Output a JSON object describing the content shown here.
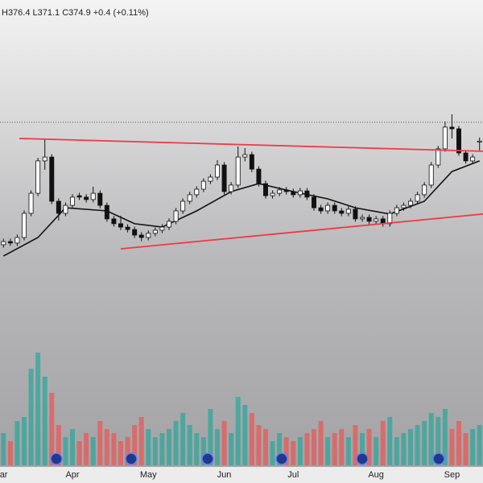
{
  "chart_data": {
    "type": "candlestick",
    "header": "H376.4 L371.1 C374.9 +0.4 (+0.11%)",
    "xlim": [
      -0.5,
      69.5
    ],
    "xticks": [
      {
        "value": -0.5,
        "label": "Mar"
      },
      {
        "value": 10,
        "label": "Apr"
      },
      {
        "value": 21,
        "label": "May"
      },
      {
        "value": 32,
        "label": "Jun"
      },
      {
        "value": 42,
        "label": "Jul"
      },
      {
        "value": 54,
        "label": "Aug"
      },
      {
        "value": 65,
        "label": "Sep"
      }
    ],
    "ylim": [
      300,
      405
    ],
    "up_color": "#ffffff",
    "down_color": "#111111",
    "ohlc": [
      [
        332.0,
        334.5,
        330.8,
        333.3
      ],
      [
        333.3,
        334.5,
        331.5,
        332.7
      ],
      [
        332.7,
        336.2,
        331.5,
        335.0
      ],
      [
        335.0,
        346.2,
        333.8,
        345.0
      ],
      [
        345.0,
        354.5,
        343.8,
        353.3
      ],
      [
        353.3,
        368.0,
        352.1,
        366.7
      ],
      [
        366.7,
        375.7,
        363.0,
        368.3
      ],
      [
        368.3,
        369.5,
        348.8,
        350.0
      ],
      [
        350.0,
        351.2,
        342.0,
        345.0
      ],
      [
        345.0,
        349.5,
        343.8,
        348.3
      ],
      [
        348.3,
        352.9,
        347.1,
        351.7
      ],
      [
        352.3,
        353.5,
        350.5,
        351.7
      ],
      [
        351.7,
        352.9,
        349.5,
        350.7
      ],
      [
        350.7,
        356.0,
        349.5,
        353.3
      ],
      [
        353.3,
        354.5,
        347.1,
        348.3
      ],
      [
        348.3,
        349.5,
        341.5,
        342.7
      ],
      [
        342.7,
        343.9,
        339.5,
        340.7
      ],
      [
        340.7,
        344.0,
        338.1,
        339.3
      ],
      [
        339.3,
        340.5,
        337.1,
        338.3
      ],
      [
        338.3,
        339.5,
        334.8,
        336.0
      ],
      [
        336.0,
        337.2,
        333.5,
        335.0
      ],
      [
        335.0,
        337.9,
        333.8,
        336.7
      ],
      [
        336.7,
        339.2,
        335.5,
        338.0
      ],
      [
        338.0,
        340.5,
        336.8,
        339.3
      ],
      [
        339.3,
        342.9,
        338.1,
        341.7
      ],
      [
        341.7,
        347.2,
        340.5,
        346.0
      ],
      [
        346.0,
        351.2,
        344.8,
        350.0
      ],
      [
        350.0,
        353.9,
        348.8,
        352.7
      ],
      [
        352.7,
        356.2,
        351.5,
        355.0
      ],
      [
        355.0,
        359.5,
        353.8,
        358.3
      ],
      [
        358.3,
        361.2,
        357.1,
        360.0
      ],
      [
        360.0,
        367.0,
        358.8,
        365.0
      ],
      [
        365.0,
        366.2,
        352.8,
        354.0
      ],
      [
        354.0,
        357.9,
        352.8,
        356.7
      ],
      [
        356.7,
        372.7,
        355.5,
        368.3
      ],
      [
        368.3,
        372.0,
        366.5,
        369.3
      ],
      [
        369.3,
        370.5,
        362.1,
        363.3
      ],
      [
        363.3,
        364.5,
        356.1,
        357.3
      ],
      [
        357.3,
        358.5,
        351.1,
        352.3
      ],
      [
        352.3,
        354.5,
        351.1,
        353.3
      ],
      [
        353.3,
        355.9,
        352.1,
        354.7
      ],
      [
        354.7,
        355.9,
        352.8,
        354.0
      ],
      [
        354.0,
        355.2,
        351.5,
        352.7
      ],
      [
        352.7,
        355.5,
        351.5,
        354.3
      ],
      [
        354.3,
        355.5,
        350.5,
        351.7
      ],
      [
        351.7,
        352.9,
        346.1,
        347.3
      ],
      [
        347.3,
        348.5,
        344.8,
        346.0
      ],
      [
        346.0,
        349.5,
        344.8,
        348.3
      ],
      [
        348.3,
        349.5,
        344.8,
        346.0
      ],
      [
        346.0,
        347.2,
        343.8,
        345.0
      ],
      [
        345.0,
        347.9,
        343.8,
        346.7
      ],
      [
        346.7,
        347.9,
        341.5,
        342.7
      ],
      [
        342.7,
        344.5,
        341.5,
        343.3
      ],
      [
        343.3,
        344.5,
        340.5,
        341.7
      ],
      [
        341.7,
        343.9,
        340.5,
        342.7
      ],
      [
        342.7,
        343.9,
        339.5,
        340.7
      ],
      [
        340.7,
        346.2,
        339.5,
        345.0
      ],
      [
        345.0,
        348.5,
        343.8,
        347.3
      ],
      [
        347.3,
        349.5,
        346.1,
        348.3
      ],
      [
        348.3,
        351.2,
        347.1,
        350.0
      ],
      [
        350.0,
        353.9,
        348.8,
        352.7
      ],
      [
        352.7,
        357.9,
        351.5,
        356.7
      ],
      [
        356.7,
        366.2,
        355.5,
        365.0
      ],
      [
        365.0,
        372.9,
        363.8,
        371.7
      ],
      [
        371.7,
        383.0,
        370.5,
        380.7
      ],
      [
        380.7,
        386.0,
        376.0,
        380.0
      ],
      [
        380.0,
        381.2,
        368.8,
        370.0
      ],
      [
        370.0,
        371.2,
        365.5,
        366.7
      ],
      [
        366.7,
        369.5,
        365.5,
        368.3
      ],
      [
        374.5,
        376.4,
        371.1,
        374.9
      ]
    ],
    "ma": {
      "color": "#111111",
      "x": [
        0,
        5,
        9,
        15,
        19,
        23,
        28,
        33,
        37,
        42,
        47,
        51,
        56,
        61,
        65,
        69
      ],
      "values": [
        327.3,
        335.0,
        347.3,
        346.0,
        340.7,
        339.3,
        346.0,
        354.0,
        357.3,
        354.0,
        351.0,
        347.3,
        344.7,
        350.0,
        362.3,
        366.7
      ]
    },
    "trendlines": [
      {
        "color": "#f23645",
        "x": [
          2.3,
          69.5
        ],
        "values": [
          376.0,
          370.7
        ]
      },
      {
        "color": "#f23645",
        "x": [
          17.0,
          69.5
        ],
        "values": [
          330.3,
          344.7
        ]
      }
    ],
    "price_line": 382.7,
    "volume": {
      "vlim": [
        0,
        160
      ],
      "up_color": "#26a69a",
      "down_color": "#ef5350",
      "values": [
        40,
        30,
        55,
        60,
        120,
        140,
        110,
        90,
        50,
        35,
        45,
        30,
        40,
        35,
        55,
        45,
        40,
        30,
        35,
        50,
        60,
        45,
        35,
        40,
        45,
        55,
        65,
        50,
        40,
        35,
        70,
        45,
        55,
        40,
        85,
        75,
        65,
        50,
        45,
        30,
        40,
        35,
        30,
        35,
        40,
        45,
        55,
        35,
        40,
        45,
        35,
        50,
        40,
        45,
        35,
        55,
        60,
        35,
        40,
        45,
        50,
        55,
        65,
        60,
        70,
        45,
        55,
        40,
        45,
        50
      ]
    }
  }
}
